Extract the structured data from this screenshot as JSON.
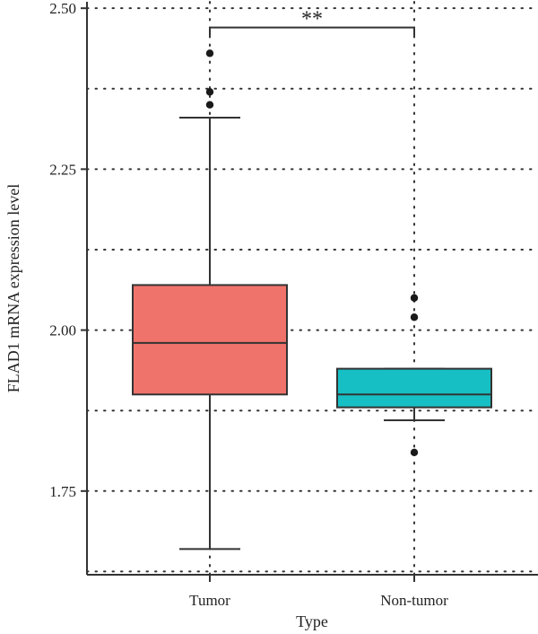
{
  "chart_data": {
    "type": "box",
    "xlabel": "Type",
    "ylabel": "FLAD1 mRNA expression level",
    "ylim": [
      1.62,
      2.51
    ],
    "yticks": [
      1.75,
      2.0,
      2.25,
      2.5
    ],
    "ytick_labels": [
      "1.75",
      "2.00",
      "2.25",
      "2.50"
    ],
    "grid": true,
    "categories": [
      "Tumor",
      "Non-tumor"
    ],
    "boxes": [
      {
        "category": "Tumor",
        "color": "#F0736B",
        "whisker_low": 1.66,
        "q1": 1.9,
        "median": 1.98,
        "q3": 2.07,
        "whisker_high": 2.33,
        "outliers": [
          2.35,
          2.37,
          2.43
        ]
      },
      {
        "category": "Non-tumor",
        "color": "#16BFC4",
        "whisker_low": 1.86,
        "q1": 1.88,
        "median": 1.9,
        "q3": 1.94,
        "whisker_high": 1.94,
        "outliers": [
          1.81,
          2.02,
          2.05
        ]
      }
    ],
    "significance": {
      "label": "**",
      "y": 2.47
    }
  }
}
